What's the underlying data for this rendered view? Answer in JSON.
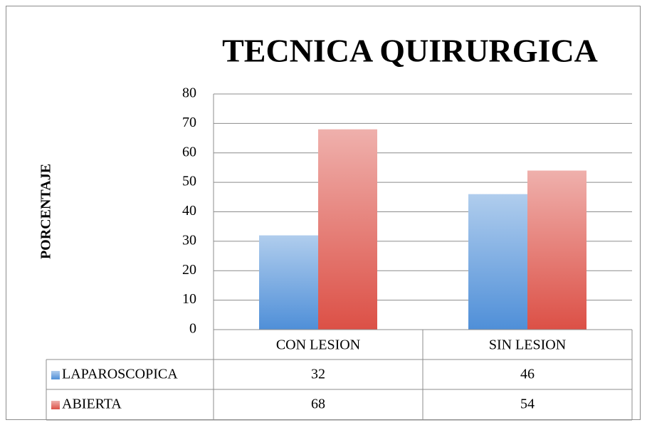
{
  "chart_data": {
    "type": "bar",
    "title": "TECNICA QUIRURGICA",
    "y_label": "PORCENTAJE",
    "categories": [
      "CON LESION",
      "SIN LESION"
    ],
    "series": [
      {
        "name": "LAPAROSCOPICA",
        "color": "#4f8fd8",
        "values": [
          32,
          46
        ]
      },
      {
        "name": "ABIERTA",
        "color": "#dc5046",
        "values": [
          68,
          54
        ]
      }
    ],
    "ylim": [
      0,
      80
    ],
    "yticks": [
      0,
      10,
      20,
      30,
      40,
      50,
      60,
      70,
      80
    ],
    "grid": true,
    "data_table": true
  }
}
